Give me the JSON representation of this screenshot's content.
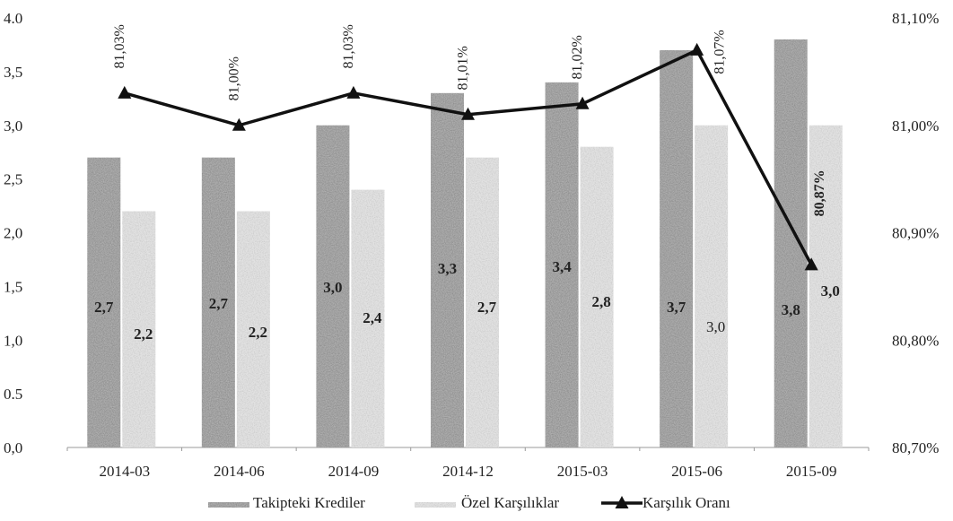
{
  "chart_data": {
    "type": "bar",
    "categories": [
      "2014-03",
      "2014-06",
      "2014-09",
      "2014-12",
      "2015-03",
      "2015-06",
      "2015-09"
    ],
    "series": [
      {
        "name": "Takipteki Krediler",
        "kind": "bar",
        "axis": "left",
        "values": [
          2.7,
          2.7,
          3.0,
          3.3,
          3.4,
          3.7,
          3.8
        ],
        "labels": [
          "2,7",
          "2,7",
          "3,0",
          "3,3",
          "3,4",
          "3,7",
          "3,8"
        ],
        "color": "#b0b0b0"
      },
      {
        "name": "Özel Karşılıklar",
        "kind": "bar",
        "axis": "left",
        "values": [
          2.2,
          2.2,
          2.4,
          2.7,
          2.8,
          3.0,
          3.0
        ],
        "labels": [
          "2,2",
          "2,2",
          "2,4",
          "2,7",
          "2,8",
          "3,0",
          "3,0"
        ],
        "color": "#e2e2e2"
      },
      {
        "name": "Karşılık Oranı",
        "kind": "line",
        "axis": "right",
        "values": [
          81.03,
          81.0,
          81.03,
          81.01,
          81.02,
          81.07,
          80.87
        ],
        "labels": [
          "81,03%",
          "81,00%",
          "81,03%",
          "81,01%",
          "81,02%",
          "81,07%",
          "80,87%"
        ],
        "color": "#111111",
        "marker": "triangle"
      }
    ],
    "yaxis_left": {
      "range": [
        0,
        4.0
      ],
      "ticks": [
        0,
        0.5,
        1.0,
        1.5,
        2.0,
        2.5,
        3.0,
        3.5,
        4.0
      ],
      "tick_labels": [
        "0,0",
        "0.5",
        "1,0",
        "1,5",
        "2,0",
        "2,5",
        "3,0",
        "3,5",
        "4.0"
      ]
    },
    "yaxis_right": {
      "range": [
        80.7,
        81.1
      ],
      "ticks": [
        80.7,
        80.8,
        80.9,
        81.0,
        81.1
      ],
      "tick_labels": [
        "80,70%",
        "80,80%",
        "80,90%",
        "81,00%",
        "81,10%"
      ]
    },
    "legend": "bottom",
    "grid": false,
    "title": "",
    "xlabel": "",
    "ylabel": ""
  }
}
